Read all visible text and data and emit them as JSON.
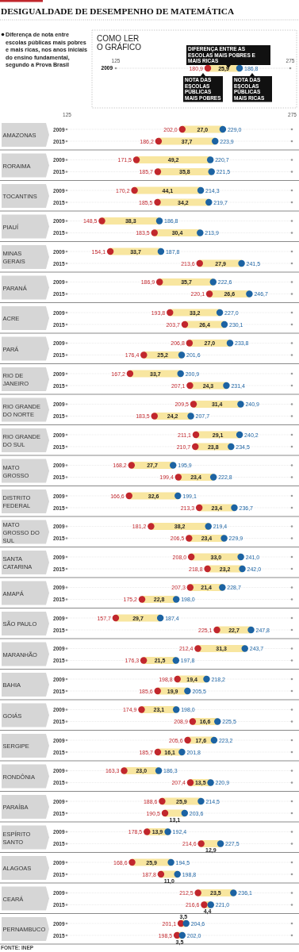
{
  "chart_data": {
    "type": "bar",
    "orientation": "horizontal",
    "title": "DESIGUALDADE DE DESEMPENHO DE MATEMÁTICA",
    "subtitle": "Diferença de nota entre escolas públicas mais pobres e mais ricas, nos anos iniciais do ensino fundamental, segundo a Prova Brasil",
    "legend_title": "COMO LER O GRÁFICO",
    "legend": "top right",
    "grid": "y",
    "marker": "circle",
    "xlim": [
      125,
      275
    ],
    "xticks": [
      125,
      275
    ],
    "categories": [
      "2009",
      "2015",
      "2009",
      "2015",
      "2009",
      "2015",
      "2009",
      "2015",
      "2009",
      "2015",
      "2009",
      "2015",
      "2009",
      "2015",
      "2009",
      "2015",
      "2009",
      "2015",
      "2009",
      "2015",
      "2009",
      "2015",
      "2009",
      "2015",
      "2009",
      "2015",
      "2009",
      "2015",
      "2009",
      "2015",
      "2009",
      "2015",
      "2009",
      "2015",
      "2009",
      "2015",
      "2009",
      "2015",
      "2009",
      "2015",
      "2009",
      "2015",
      "2009",
      "2015",
      "2009",
      "2015",
      "2009",
      "2015",
      "2009",
      "2015",
      "2009",
      "2015",
      "2009",
      "2015"
    ],
    "series": [
      {
        "type": "bar",
        "name": "DIFERENÇA ENTRE AS ESCOLAS MAIS POBRES E MAIS RICAS",
        "color": "#f8e6a0",
        "base": [
          202.0,
          186.2,
          171.5,
          185.7,
          170.2,
          185.5,
          148.5,
          183.5,
          154.1,
          213.6,
          186.9,
          220.1,
          193.8,
          203.7,
          206.8,
          176.4,
          167.2,
          207.1,
          209.5,
          183.5,
          211.1,
          210.7,
          168.2,
          199.4,
          166.6,
          213.3,
          181.2,
          206.5,
          208.0,
          218.8,
          207.3,
          175.2,
          157.7,
          225.1,
          212.4,
          176.3,
          198.8,
          185.6,
          174.9,
          208.9,
          205.6,
          185.7,
          163.3,
          207.4,
          188.6,
          190.5,
          178.5,
          214.6,
          168.6,
          187.8,
          212.5,
          216.6,
          201.1,
          198.5
        ],
        "values": [
          27.0,
          37.7,
          49.2,
          35.8,
          44.1,
          34.2,
          38.3,
          30.4,
          33.7,
          27.9,
          35.7,
          26.6,
          33.2,
          26.4,
          27.0,
          25.2,
          33.7,
          24.3,
          31.4,
          24.2,
          29.1,
          23.8,
          27.7,
          23.4,
          32.6,
          23.4,
          38.2,
          23.4,
          33.0,
          23.2,
          21.4,
          22.8,
          29.7,
          22.7,
          31.3,
          21.5,
          19.4,
          19.9,
          23.1,
          16.6,
          17.6,
          16.1,
          23.0,
          13.5,
          25.9,
          13.1,
          13.9,
          12.9,
          25.9,
          11.0,
          23.5,
          4.4,
          3.5,
          3.5
        ],
        "value_labels": [
          "27,0",
          "37,7",
          "49,2",
          "35,8",
          "44,1",
          "34,2",
          "38,3",
          "30,4",
          "33,7",
          "27,9",
          "35,7",
          "26,6",
          "33,2",
          "26,4",
          "27,0",
          "25,2",
          "33,7",
          "24,3",
          "31,4",
          "24,2",
          "29,1",
          "23,8",
          "27,7",
          "23,4",
          "32,6",
          "23,4",
          "38,2",
          "23,4",
          "33,0",
          "23,2",
          "21,4",
          "22,8",
          "29,7",
          "22,7",
          "31,3",
          "21,5",
          "19,4",
          "19,9",
          "23,1",
          "16,6",
          "17,6",
          "16,1",
          "23,0",
          "13,5",
          "25,9",
          "13,1",
          "13,9",
          "12,9",
          "25,9",
          "11,0",
          "23,5",
          "4,4",
          "3,5",
          "3,5"
        ]
      },
      {
        "type": "scatter",
        "name": "NOTA DAS ESCOLAS PÚBLICAS MAIS POBRES",
        "color": "#c1272d",
        "values": [
          202.0,
          186.2,
          171.5,
          185.7,
          170.2,
          185.5,
          148.5,
          183.5,
          154.1,
          213.6,
          186.9,
          220.1,
          193.8,
          203.7,
          206.8,
          176.4,
          167.2,
          207.1,
          209.5,
          183.5,
          211.1,
          210.7,
          168.2,
          199.4,
          166.6,
          213.3,
          181.2,
          206.5,
          208.0,
          218.8,
          207.3,
          175.2,
          157.7,
          225.1,
          212.4,
          176.3,
          198.8,
          185.6,
          174.9,
          208.9,
          205.6,
          185.7,
          163.3,
          207.4,
          188.6,
          190.5,
          178.5,
          214.6,
          168.6,
          187.8,
          212.5,
          216.6,
          201.1,
          198.5
        ],
        "value_labels": [
          "202,0",
          "186,2",
          "171,5",
          "185,7",
          "170,2",
          "185,5",
          "148,5",
          "183,5",
          "154,1",
          "213,6",
          "186,9",
          "220,1",
          "193,8",
          "203,7",
          "206,8",
          "176,4",
          "167,2",
          "207,1",
          "209,5",
          "183,5",
          "211,1",
          "210,7",
          "168,2",
          "199,4",
          "166,6",
          "213,3",
          "181,2",
          "206,5",
          "208,0",
          "218,8",
          "207,3",
          "175,2",
          "157,7",
          "225,1",
          "212,4",
          "176,3",
          "198,8",
          "185,6",
          "174,9",
          "208,9",
          "205,6",
          "185,7",
          "163,3",
          "207,4",
          "188,6",
          "190,5",
          "178,5",
          "214,6",
          "168,6",
          "187,8",
          "212,5",
          "216,6",
          "201,1",
          "198,5"
        ]
      },
      {
        "type": "scatter",
        "name": "NOTA DAS ESCOLAS PÚBLICAS MAIS RICAS",
        "color": "#1c63a3",
        "values": [
          229.0,
          223.9,
          220.7,
          221.5,
          214.3,
          219.7,
          186.8,
          213.9,
          187.8,
          241.5,
          222.6,
          246.7,
          227.0,
          230.1,
          233.8,
          201.6,
          200.9,
          231.4,
          240.9,
          207.7,
          240.2,
          234.5,
          195.9,
          222.8,
          199.1,
          236.7,
          219.4,
          229.9,
          241.0,
          242.0,
          228.7,
          198.0,
          187.4,
          247.8,
          243.7,
          197.8,
          218.2,
          205.5,
          198.0,
          225.5,
          223.2,
          201.8,
          186.3,
          220.9,
          214.5,
          203.6,
          192.4,
          227.5,
          194.5,
          198.8,
          236.1,
          221.0,
          204.6,
          202.0
        ],
        "value_labels": [
          "229,0",
          "223,9",
          "220,7",
          "221,5",
          "214,3",
          "219,7",
          "186,8",
          "213,9",
          "187,8",
          "241,5",
          "222,6",
          "246,7",
          "227,0",
          "230,1",
          "233,8",
          "201,6",
          "200,9",
          "231,4",
          "240,9",
          "207,7",
          "240,2",
          "234,5",
          "195,9",
          "222,8",
          "199,1",
          "236,7",
          "219,4",
          "229,9",
          "241,0",
          "242,0",
          "228,7",
          "198,0",
          "187,4",
          "247,8",
          "243,7",
          "197,8",
          "218,2",
          "205,5",
          "198,0",
          "225,5",
          "223,2",
          "201,8",
          "186,3",
          "220,9",
          "214,5",
          "203,6",
          "192,4",
          "227,5",
          "194,5",
          "198,8",
          "236,1",
          "221,0",
          "204,6",
          "202,0"
        ]
      }
    ],
    "annotations": [
      "AMAZONAS",
      "RORAIMA",
      "TOCANTINS",
      "PIAUÍ",
      "MINAS GERAIS",
      "PARANÁ",
      "ACRE",
      "PARÁ",
      "RIO DE JANEIRO",
      "RIO GRANDE DO NORTE",
      "RIO GRANDE DO SUL",
      "MATO GROSSO",
      "DISTRITO FEDERAL",
      "MATO GROSSO DO SUL",
      "SANTA CATARINA",
      "AMAPÁ",
      "SÃO PAULO",
      "MARANHÃO",
      "BAHIA",
      "GOIÁS",
      "SERGIPE",
      "RONDÔNIA",
      "PARAÍBA",
      "ESPÍRITO SANTO",
      "ALAGOAS",
      "CEARÁ",
      "PERNAMBUCO",
      "FONTE: INEP",
      "2009",
      "125",
      "275",
      "180,9",
      "25,9",
      "186,8"
    ]
  }
}
